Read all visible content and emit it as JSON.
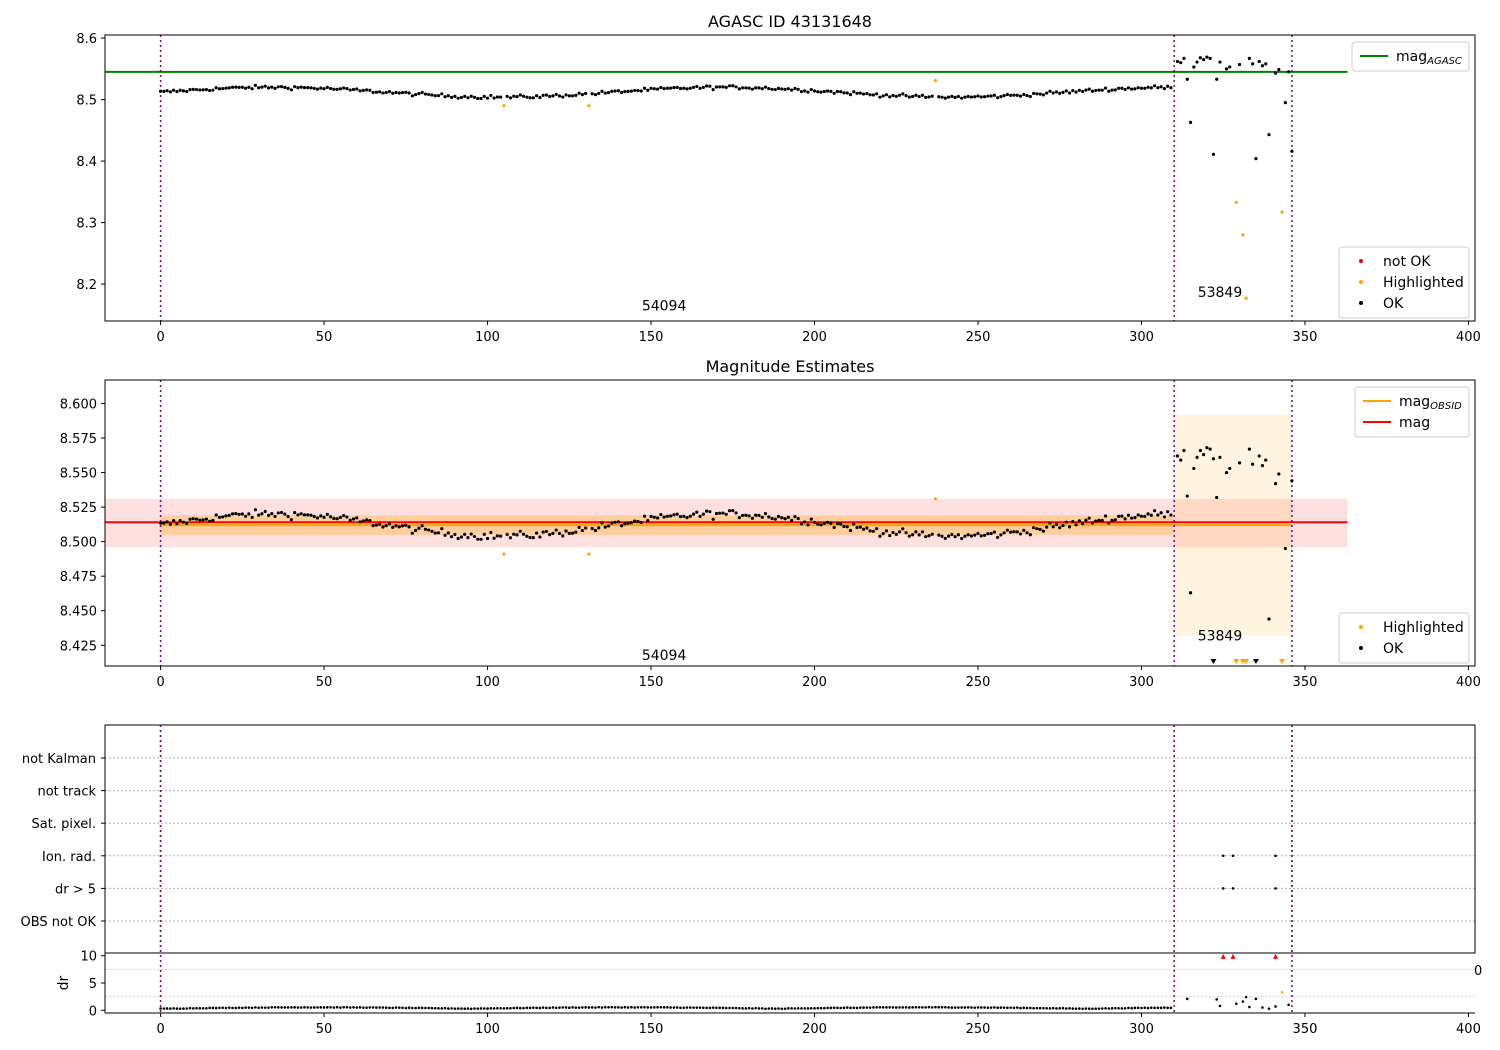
{
  "chart_data": [
    {
      "type": "scatter",
      "title": "AGASC ID 43131648",
      "xlim": [
        -17,
        402
      ],
      "ylim": [
        8.14,
        8.605
      ],
      "xticks": [
        "0",
        "50",
        "100",
        "150",
        "200",
        "250",
        "300",
        "350",
        "400"
      ],
      "yticks": [
        "8.2",
        "8.3",
        "8.4",
        "8.5",
        "8.6"
      ],
      "obs_boundaries": [
        0,
        310,
        346
      ],
      "obs_labels": [
        {
          "text": "54094",
          "x": 154,
          "y": 8.165
        },
        {
          "text": "53849",
          "x": 324,
          "y": 8.187
        }
      ],
      "reference_lines": [
        {
          "name": "mag_AGASC",
          "value": 8.545,
          "x_end": 363,
          "color": "#008000"
        }
      ],
      "series": [
        {
          "name": "not OK",
          "color": "#ff0000",
          "points": []
        },
        {
          "name": "Highlighted",
          "color": "#ffa500",
          "points": [
            [
              105,
              8.49
            ],
            [
              131,
              8.49
            ],
            [
              237,
              8.531
            ],
            [
              329,
              8.333
            ],
            [
              331,
              8.28
            ],
            [
              332,
              8.177
            ],
            [
              343,
              8.317
            ]
          ]
        },
        {
          "name": "OK",
          "color": "#000000",
          "points": [
            [
              311,
              8.562
            ],
            [
              312,
              8.56
            ],
            [
              313,
              8.567
            ],
            [
              314,
              8.533
            ],
            [
              315,
              8.463
            ],
            [
              316,
              8.553
            ],
            [
              317,
              8.561
            ],
            [
              318,
              8.568
            ],
            [
              319,
              8.565
            ],
            [
              320,
              8.569
            ],
            [
              321,
              8.567
            ],
            [
              322,
              8.411
            ],
            [
              323,
              8.533
            ],
            [
              324,
              8.561
            ],
            [
              326,
              8.55
            ],
            [
              327,
              8.553
            ],
            [
              330,
              8.557
            ],
            [
              333,
              8.567
            ],
            [
              334,
              8.558
            ],
            [
              335,
              8.404
            ],
            [
              336,
              8.562
            ],
            [
              337,
              8.555
            ],
            [
              338,
              8.558
            ],
            [
              339,
              8.443
            ],
            [
              341,
              8.543
            ],
            [
              342,
              8.549
            ],
            [
              344,
              8.495
            ],
            [
              345,
              8.545
            ],
            [
              346,
              8.416
            ]
          ]
        }
      ],
      "legends": [
        {
          "items": [
            {
              "label": "mag",
              "sub": "AGASC",
              "kind": "line",
              "color": "#008000"
            }
          ]
        },
        {
          "items": [
            {
              "label": "not OK",
              "kind": "dot",
              "color": "#ff0000"
            },
            {
              "label": "Highlighted",
              "kind": "dot",
              "color": "#ffa500"
            },
            {
              "label": "OK",
              "kind": "dot",
              "color": "#000000"
            }
          ]
        }
      ]
    },
    {
      "type": "scatter",
      "title": "Magnitude Estimates",
      "xlim": [
        -17,
        402
      ],
      "ylim": [
        8.41,
        8.617
      ],
      "xticks": [
        "0",
        "50",
        "100",
        "150",
        "200",
        "250",
        "300",
        "350",
        "400"
      ],
      "yticks": [
        "8.425",
        "8.450",
        "8.475",
        "8.500",
        "8.525",
        "8.550",
        "8.575",
        "8.600"
      ],
      "obs_boundaries": [
        0,
        310,
        346
      ],
      "obs_labels": [
        {
          "text": "54094",
          "x": 154,
          "y": 8.418
        },
        {
          "text": "53849",
          "x": 324,
          "y": 8.432
        }
      ],
      "bands": [
        {
          "name": "mag range",
          "x0": -17,
          "x1": 363,
          "y0": 8.496,
          "y1": 8.531,
          "color": "#ff0000",
          "opacity": 0.12
        },
        {
          "name": "mag_OBSID range 54094",
          "x0": 0,
          "x1": 310,
          "y0": 8.505,
          "y1": 8.519,
          "color": "#ffa500",
          "opacity": 0.3
        },
        {
          "name": "mag_OBSID range 53849",
          "x0": 310,
          "x1": 346,
          "y0": 8.432,
          "y1": 8.592,
          "color": "#ffa500",
          "opacity": 0.12
        }
      ],
      "reference_lines": [
        {
          "name": "mag_OBSID 54094",
          "value": 8.512,
          "x_start": 0,
          "x_end": 310,
          "color": "#ffa500"
        },
        {
          "name": "mag_OBSID 53849",
          "value": 8.512,
          "x_start": 310,
          "x_end": 346,
          "color": "#ffa500"
        },
        {
          "name": "mag",
          "value": 8.514,
          "x_start": -17,
          "x_end": 363,
          "color": "#ff0000"
        }
      ],
      "series": [
        {
          "name": "Highlighted",
          "color": "#ffa500",
          "points": [
            [
              105,
              8.491
            ],
            [
              131,
              8.491
            ],
            [
              237,
              8.531
            ]
          ]
        },
        {
          "name": "OK",
          "color": "#000000",
          "points": [
            [
              311,
              8.562
            ],
            [
              312,
              8.559
            ],
            [
              313,
              8.566
            ],
            [
              314,
              8.533
            ],
            [
              315,
              8.463
            ],
            [
              316,
              8.553
            ],
            [
              317,
              8.561
            ],
            [
              318,
              8.566
            ],
            [
              319,
              8.563
            ],
            [
              320,
              8.568
            ],
            [
              321,
              8.567
            ],
            [
              322,
              8.56
            ],
            [
              323,
              8.532
            ],
            [
              324,
              8.561
            ],
            [
              326,
              8.55
            ],
            [
              327,
              8.553
            ],
            [
              330,
              8.557
            ],
            [
              333,
              8.567
            ],
            [
              334,
              8.556
            ],
            [
              336,
              8.562
            ],
            [
              337,
              8.555
            ],
            [
              338,
              8.559
            ],
            [
              339,
              8.444
            ],
            [
              341,
              8.542
            ],
            [
              342,
              8.549
            ],
            [
              344,
              8.495
            ],
            [
              346,
              8.544
            ]
          ]
        }
      ],
      "markers_below": [
        {
          "x": 322,
          "color": "#000000"
        },
        {
          "x": 329,
          "color": "#ffa500"
        },
        {
          "x": 331,
          "color": "#ffa500"
        },
        {
          "x": 332,
          "color": "#ffa500"
        },
        {
          "x": 335,
          "color": "#000000"
        },
        {
          "x": 343,
          "color": "#ffa500"
        }
      ],
      "legends": [
        {
          "items": [
            {
              "label": "mag",
              "sub": "OBSID",
              "kind": "line",
              "color": "#ffa500"
            },
            {
              "label": "mag",
              "kind": "line",
              "color": "#ff0000"
            }
          ]
        },
        {
          "items": [
            {
              "label": "Highlighted",
              "kind": "dot",
              "color": "#ffa500"
            },
            {
              "label": "OK",
              "kind": "dot",
              "color": "#000000"
            }
          ]
        }
      ]
    },
    {
      "type": "scatter",
      "title": "",
      "xlim": [
        -17,
        402
      ],
      "xticks": [
        "0",
        "50",
        "100",
        "150",
        "200",
        "250",
        "300",
        "350",
        "400"
      ],
      "categories": [
        "not Kalman",
        "not track",
        "Sat. pixel.",
        "Ion. rad.",
        "dr > 5",
        "OBS not OK"
      ],
      "flags": [
        {
          "category": "Ion. rad.",
          "x": [
            325,
            328,
            341
          ]
        },
        {
          "category": "dr > 5",
          "x": [
            325,
            328,
            341
          ]
        }
      ],
      "obs_boundaries": [
        0,
        310,
        346
      ]
    },
    {
      "type": "scatter",
      "title": "",
      "ylabel": "dr",
      "xlim": [
        -17,
        402
      ],
      "ylim": [
        -0.5,
        10.5
      ],
      "xticks": [
        "0",
        "50",
        "100",
        "150",
        "200",
        "250",
        "300",
        "350",
        "400"
      ],
      "yticks": [
        "0",
        "5",
        "10"
      ],
      "cut_tick_label": "0",
      "obs_boundaries": [
        0,
        310,
        346
      ],
      "series": [
        {
          "name": "dr",
          "color": "#000000",
          "points": [
            [
              314,
              2.1
            ],
            [
              323,
              2.0
            ],
            [
              324,
              0.8
            ],
            [
              329,
              1.2
            ],
            [
              331,
              1.6
            ],
            [
              332,
              2.4
            ],
            [
              333,
              0.6
            ],
            [
              335,
              2.1
            ],
            [
              337,
              0.5
            ],
            [
              339,
              0.3
            ],
            [
              341,
              0.7
            ],
            [
              345,
              1.0
            ]
          ]
        },
        {
          "name": "Highlighted",
          "color": "#ffa500",
          "points": [
            [
              343,
              3.3
            ]
          ]
        },
        {
          "name": "not OK",
          "color": "#ff0000",
          "points": [
            [
              325,
              9.8
            ],
            [
              328,
              9.8
            ],
            [
              341,
              9.8
            ]
          ]
        }
      ]
    }
  ]
}
